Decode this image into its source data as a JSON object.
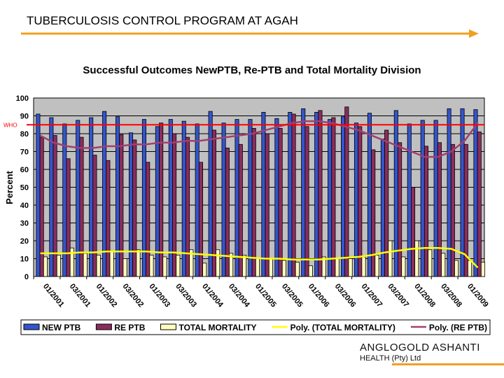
{
  "page_title": "TUBERCULOSIS CONTROL PROGRAM AT AGAH",
  "logo": {
    "brand": "ANGLOGOLD ASHANTI",
    "sub": "HEALTH (Pty) Ltd"
  },
  "colors": {
    "accent_arrow": "#f0a020",
    "new_ptb": "#3355cc",
    "re_ptb": "#8b2d5c",
    "mortality": "#ffffc0",
    "poly_mortality": "#ffff00",
    "poly_re": "#a04070",
    "who_line": "#ff0000",
    "plot_bg": "#c0c0c0"
  },
  "chart_data": {
    "type": "bar",
    "title": "Successful Outcomes NewPTB, Re-PTB and Total Mortality Division",
    "ylabel": "Percent",
    "xlabel": "",
    "ylim": [
      0,
      100
    ],
    "yticks": [
      0,
      10,
      20,
      30,
      40,
      50,
      60,
      70,
      80,
      90,
      100
    ],
    "grid": true,
    "legend_position": "bottom",
    "reference_line": {
      "label": "WHO",
      "value": 85
    },
    "tick_labels": [
      "01/2001",
      "03/2001",
      "01/2002",
      "03/2002",
      "01/2003",
      "03/2003",
      "01/2004",
      "03/2004",
      "01/2005",
      "03/2005",
      "01/2006",
      "03/2006",
      "01/2007",
      "03/2007",
      "01/2008",
      "03/2008",
      "01/2009"
    ],
    "series": [
      {
        "name": "NEW PTB",
        "kind": "bar",
        "values": [
          91,
          89,
          85.5,
          87.5,
          89,
          92.5,
          89.5,
          80.5,
          88,
          84,
          88,
          87,
          85.5,
          92.5,
          86,
          88,
          88,
          92,
          88.5,
          92,
          94,
          92,
          88,
          89.5,
          86,
          91.5,
          77,
          93,
          85.5,
          87.5,
          87.5,
          94,
          94,
          93.5
        ]
      },
      {
        "name": "RE PTB",
        "kind": "bar",
        "values": [
          78,
          79,
          66,
          78,
          68,
          65,
          79.5,
          76.5,
          64,
          86,
          80,
          78,
          64,
          82,
          72,
          74,
          83,
          80,
          83,
          91,
          84,
          93,
          89,
          95,
          84,
          71,
          82,
          75,
          50,
          73,
          75,
          74,
          74,
          81
        ]
      },
      {
        "name": "TOTAL MORTALITY",
        "kind": "bar",
        "values": [
          11,
          12,
          16,
          13,
          12,
          14,
          10,
          15,
          12,
          11,
          12,
          15,
          7.5,
          15,
          13,
          12,
          10,
          10,
          9,
          8,
          6,
          11,
          10,
          10,
          11,
          12,
          20,
          11,
          20,
          15,
          13,
          9,
          9,
          8
        ]
      },
      {
        "name": "Poly. (TOTAL MORTALITY)",
        "kind": "line",
        "values": [
          13,
          13,
          13,
          13.5,
          13.5,
          14,
          14,
          14,
          14,
          13.5,
          13.5,
          13,
          12.5,
          12,
          11.5,
          11,
          10.5,
          10,
          10,
          9.5,
          9.5,
          9.5,
          10,
          10.5,
          11,
          12,
          13.5,
          14.5,
          15.5,
          16,
          16,
          15.5,
          12.5,
          5
        ]
      },
      {
        "name": "Poly. (RE PTB)",
        "kind": "line",
        "values": [
          79,
          75,
          73,
          72,
          72,
          73,
          73,
          74,
          74,
          75,
          75,
          76,
          76,
          77,
          78,
          79,
          80,
          82,
          84,
          86,
          87,
          87,
          86,
          84,
          82,
          79,
          76,
          73,
          70,
          67,
          67,
          70,
          76,
          86
        ]
      }
    ]
  }
}
